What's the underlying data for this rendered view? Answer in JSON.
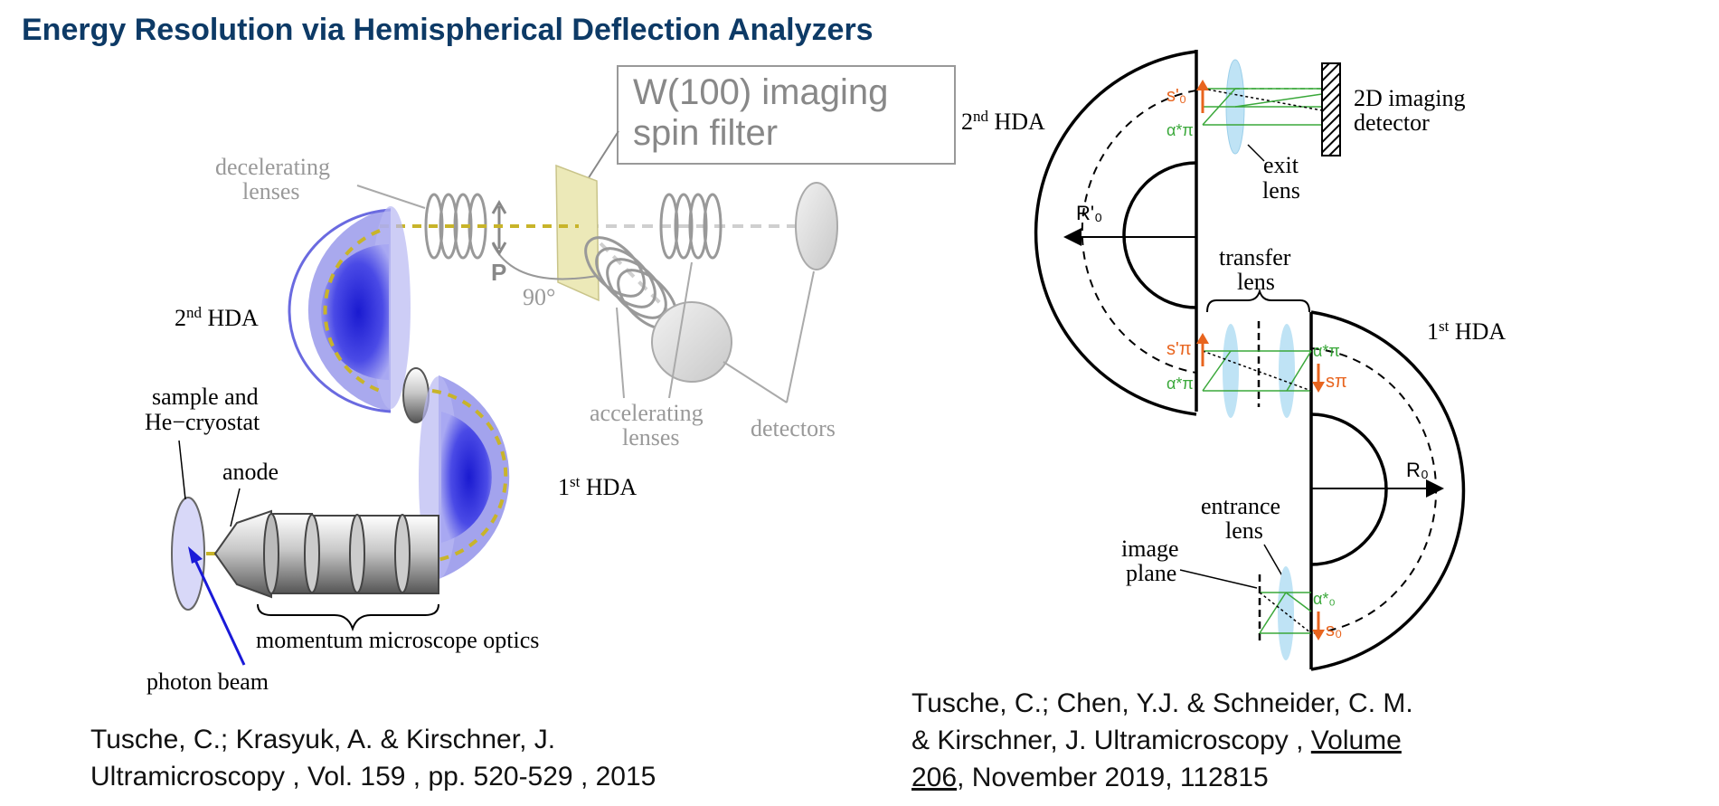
{
  "title": "Energy Resolution via Hemispherical Deflection Analyzers",
  "left_figure": {
    "filter_label_1": "W(100) imaging",
    "filter_label_2": "spin filter",
    "decelerating_1": "decelerating",
    "decelerating_2": "lenses",
    "hda2": "2",
    "hda2_sup": "nd",
    "hda2_suffix": " HDA",
    "hda1": "1",
    "hda1_sup": "st",
    "hda1_suffix": " HDA",
    "p_label": "P",
    "angle_label": "90°",
    "sample_1": "sample and",
    "sample_2": "He−cryostat",
    "anode": "anode",
    "accelerating_1": "accelerating",
    "accelerating_2": "lenses",
    "detectors": "detectors",
    "momentum": "momentum microscope optics",
    "photon": "photon beam"
  },
  "right_figure": {
    "hda2": "2",
    "hda2_sup": "nd",
    "hda2_suffix": " HDA",
    "hda1": "1",
    "hda1_sup": "st",
    "hda1_suffix": " HDA",
    "detector_1": "2D imaging",
    "detector_2": "detector",
    "exit_1": "exit",
    "exit_2": "lens",
    "transfer_1": "transfer",
    "transfer_2": "lens",
    "entrance_1": "entrance",
    "entrance_2": "lens",
    "image_1": "image",
    "image_2": "plane",
    "r0p": "R'₀",
    "r0": "R₀",
    "s0p": "s'₀",
    "a_pi_star_top": "α*π",
    "spi_p": "s'π",
    "a_pi_star_left": "α*π",
    "a_pi_star_right": "α*π",
    "spi": "sπ",
    "a0_star": "α*₀",
    "s0": "s₀"
  },
  "citation_left": {
    "line1": "Tusche, C.; Krasyuk, A. & Kirschner, J.",
    "line2": "Ultramicroscopy , Vol. 159 , pp. 520-529 , 2015"
  },
  "citation_right": {
    "line1": "Tusche, C.; Chen, Y.J. & Schneider, C. M.",
    "line2": "& Kirschner, J. Ultramicroscopy , ",
    "line2_link": "Volume",
    "line3_link": "206",
    "line3": ", November 2019, 112815"
  },
  "colors": {
    "title": "#0d3a66",
    "hda_blue": "#3a3ad6",
    "beam_yellow": "#c8b42a",
    "filter_fill": "#ece9b8",
    "orange": "#e8641e",
    "green": "#3aa83a",
    "lens_blue": "#bfe3f5",
    "photon_blue": "#1a1ad8"
  }
}
